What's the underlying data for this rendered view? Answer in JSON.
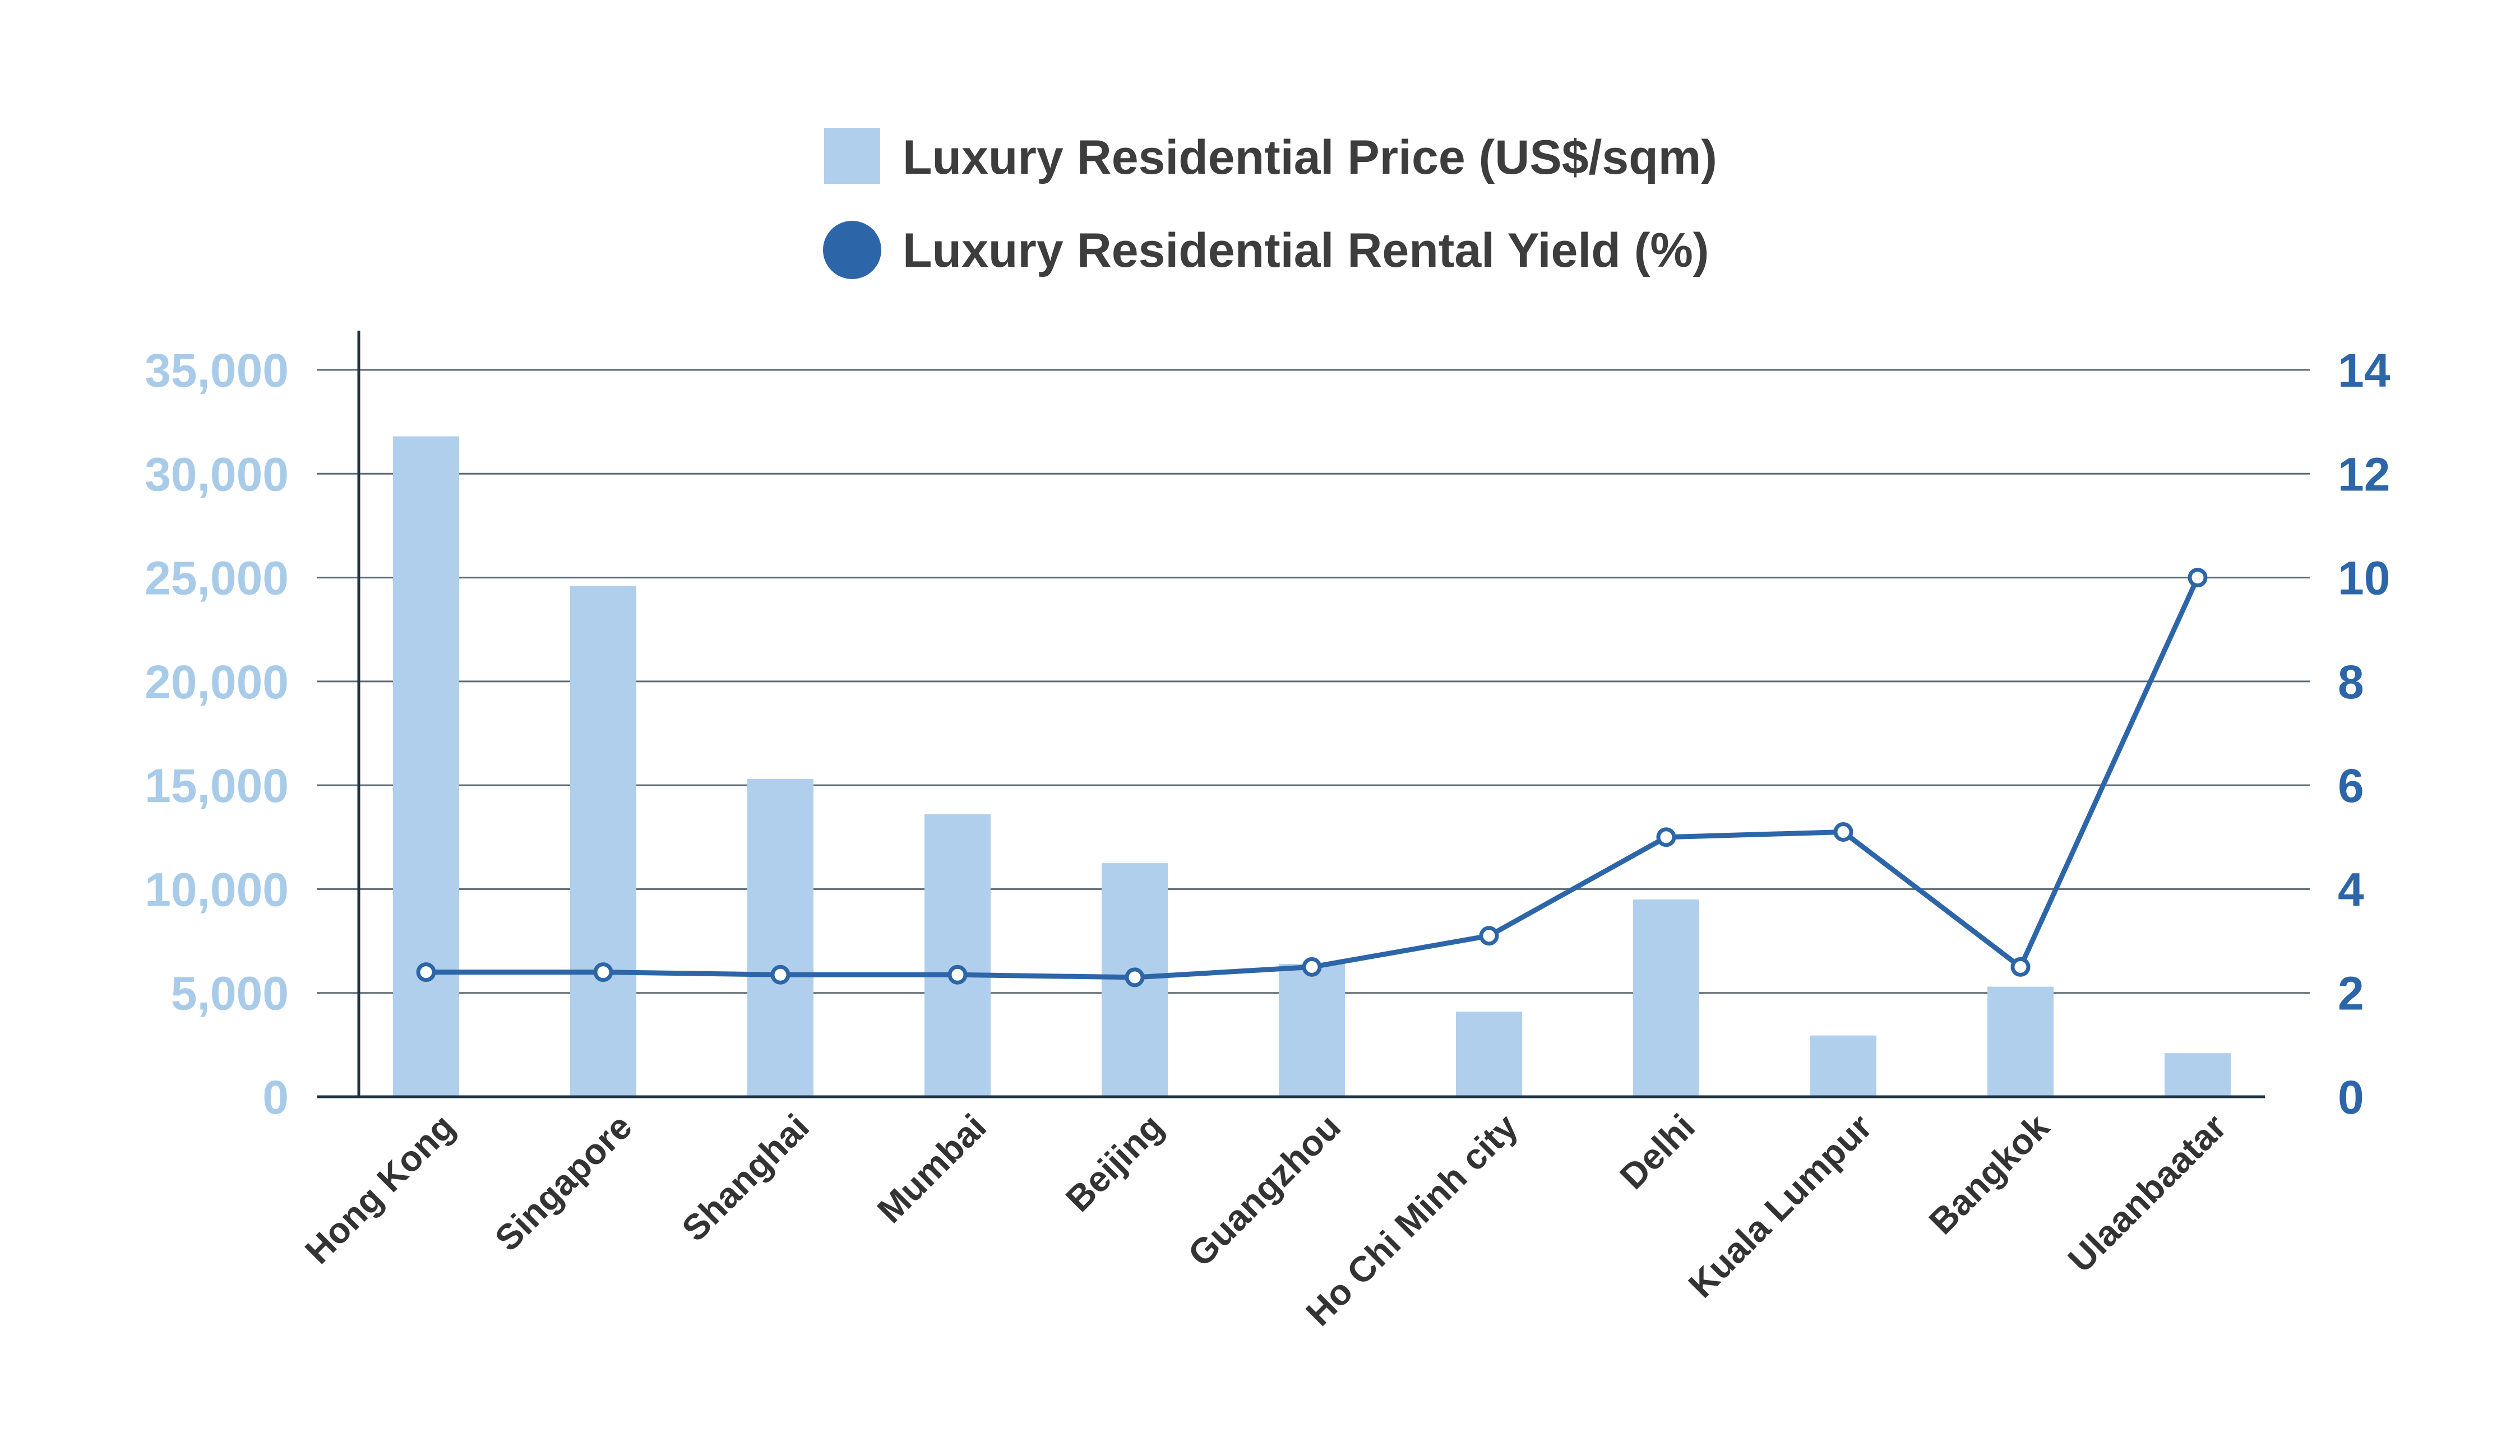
{
  "chart_data": {
    "type": "bar",
    "categories": [
      "Hong Kong",
      "Singapore",
      "Shanghai",
      "Mumbai",
      "Beijing",
      "Guangzhou",
      "Ho Chi Minh city",
      "Delhi",
      "Kuala Lumpur",
      "Bangkok",
      "Ulaanbaatar"
    ],
    "series": [
      {
        "name": "Luxury Residential Price (US$/sqm)",
        "type": "bar",
        "axis": "left",
        "color": "#b0cfed",
        "values": [
          31800,
          24600,
          15300,
          13600,
          11250,
          6400,
          4100,
          9500,
          2950,
          5300,
          2100
        ]
      },
      {
        "name": "Luxury Residential Rental Yield (%)",
        "type": "line",
        "axis": "right",
        "color": "#2d66a8",
        "values": [
          2.4,
          2.4,
          2.35,
          2.35,
          2.3,
          2.5,
          3.1,
          5.0,
          5.1,
          2.5,
          10.0
        ]
      }
    ],
    "y_left": {
      "min": 0,
      "max": 35000,
      "ticks": [
        0,
        5000,
        10000,
        15000,
        20000,
        25000,
        30000,
        35000
      ],
      "tick_labels": [
        "0",
        "5,000",
        "10,000",
        "15,000",
        "20,000",
        "25,000",
        "30,000",
        "35,000"
      ]
    },
    "y_right": {
      "min": 0,
      "max": 14,
      "ticks": [
        0,
        2,
        4,
        6,
        8,
        10,
        12,
        14
      ],
      "tick_labels": [
        "0",
        "2",
        "4",
        "6",
        "8",
        "10",
        "12",
        "14"
      ]
    },
    "grid": true,
    "legend_position": "top-center"
  }
}
